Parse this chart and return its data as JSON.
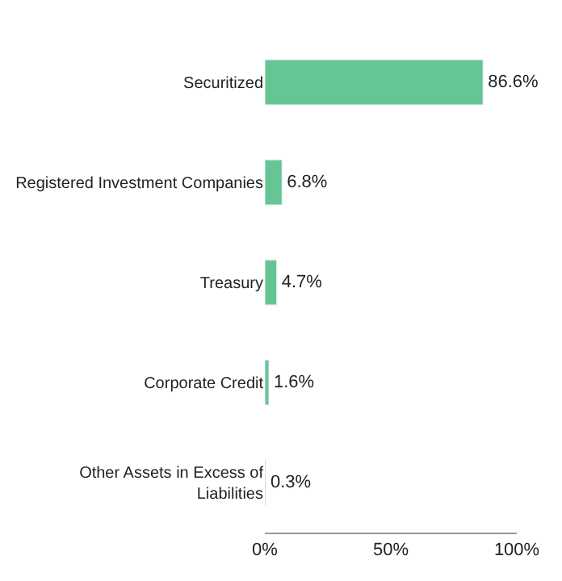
{
  "chart_data": {
    "type": "bar",
    "orientation": "horizontal",
    "categories": [
      "Securitized",
      "Registered Investment Companies",
      "Treasury",
      "Corporate Credit",
      "Other Assets in Excess of Liabilities"
    ],
    "values": [
      86.6,
      6.8,
      4.7,
      1.6,
      0.3
    ],
    "value_labels": [
      "86.6%",
      "6.8%",
      "4.7%",
      "1.6%",
      "0.3%"
    ],
    "color": "#66c595",
    "xlim": [
      0,
      100
    ],
    "xticks": [
      {
        "value": 0,
        "label": "0%"
      },
      {
        "value": 50,
        "label": "50%"
      },
      {
        "value": 100,
        "label": "100%"
      }
    ]
  }
}
